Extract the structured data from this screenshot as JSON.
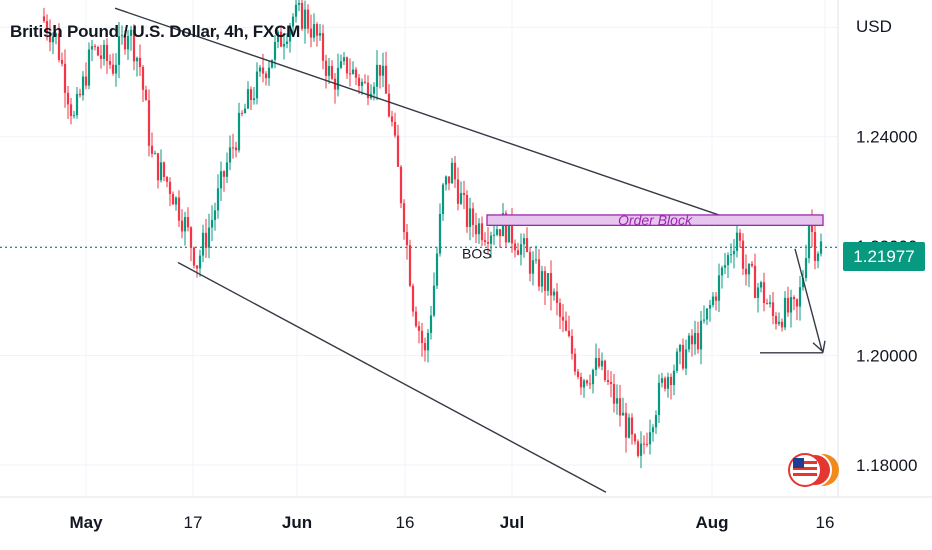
{
  "header": {
    "title": "British Pound / U.S. Dollar, 4h, FXCM",
    "currency": "USD"
  },
  "price_tag": "1.21977",
  "colors": {
    "up": "#089981",
    "down": "#f23645",
    "price_line": "#089981",
    "order_block_fill": "#e7c6ee",
    "order_block_border": "#9c27b0",
    "order_block_text": "#9c27b0",
    "trendline": "#363a45"
  },
  "flags_icon": "us-uk-flags-icon",
  "chart_data": {
    "type": "candlestick",
    "title": "British Pound / U.S. Dollar, 4h, FXCM",
    "ylabel": "USD",
    "ylim": [
      1.1745,
      1.265
    ],
    "y_ticks": [
      "1.24000",
      "1.22000",
      "1.20000",
      "1.18000"
    ],
    "x_ticks": [
      "May",
      "17",
      "Jun",
      "16",
      "Jul",
      "Aug",
      "16"
    ],
    "grid": true,
    "last_price": 1.21977,
    "price_path": [
      {
        "t": 0,
        "p": 1.262
      },
      {
        "t": 5,
        "p": 1.258
      },
      {
        "t": 11,
        "p": 1.243
      },
      {
        "t": 17,
        "p": 1.256
      },
      {
        "t": 24,
        "p": 1.253
      },
      {
        "t": 29,
        "p": 1.26
      },
      {
        "t": 33,
        "p": 1.253
      },
      {
        "t": 37,
        "p": 1.236
      },
      {
        "t": 43,
        "p": 1.231
      },
      {
        "t": 48,
        "p": 1.224
      },
      {
        "t": 52,
        "p": 1.217
      },
      {
        "t": 57,
        "p": 1.225
      },
      {
        "t": 62,
        "p": 1.235
      },
      {
        "t": 68,
        "p": 1.245
      },
      {
        "t": 74,
        "p": 1.252
      },
      {
        "t": 80,
        "p": 1.258
      },
      {
        "t": 84,
        "p": 1.262
      },
      {
        "t": 88,
        "p": 1.262
      },
      {
        "t": 92,
        "p": 1.258
      },
      {
        "t": 97,
        "p": 1.25
      },
      {
        "t": 102,
        "p": 1.253
      },
      {
        "t": 108,
        "p": 1.249
      },
      {
        "t": 113,
        "p": 1.253
      },
      {
        "t": 117,
        "p": 1.242
      },
      {
        "t": 121,
        "p": 1.225
      },
      {
        "t": 124,
        "p": 1.21
      },
      {
        "t": 128,
        "p": 1.2
      },
      {
        "t": 131,
        "p": 1.213
      },
      {
        "t": 134,
        "p": 1.23
      },
      {
        "t": 137,
        "p": 1.234
      },
      {
        "t": 142,
        "p": 1.225
      },
      {
        "t": 148,
        "p": 1.223
      },
      {
        "t": 154,
        "p": 1.224
      },
      {
        "t": 160,
        "p": 1.22
      },
      {
        "t": 165,
        "p": 1.215
      },
      {
        "t": 170,
        "p": 1.212
      },
      {
        "t": 174,
        "p": 1.205
      },
      {
        "t": 180,
        "p": 1.196
      },
      {
        "t": 186,
        "p": 1.198
      },
      {
        "t": 191,
        "p": 1.192
      },
      {
        "t": 196,
        "p": 1.186
      },
      {
        "t": 199,
        "p": 1.18
      },
      {
        "t": 203,
        "p": 1.188
      },
      {
        "t": 208,
        "p": 1.196
      },
      {
        "t": 214,
        "p": 1.2
      },
      {
        "t": 220,
        "p": 1.204
      },
      {
        "t": 225,
        "p": 1.212
      },
      {
        "t": 229,
        "p": 1.218
      },
      {
        "t": 232,
        "p": 1.223
      },
      {
        "t": 235,
        "p": 1.215
      },
      {
        "t": 240,
        "p": 1.212
      },
      {
        "t": 244,
        "p": 1.207
      },
      {
        "t": 248,
        "p": 1.208
      },
      {
        "t": 252,
        "p": 1.208
      },
      {
        "t": 254,
        "p": 1.215
      },
      {
        "t": 256,
        "p": 1.225
      },
      {
        "t": 258,
        "p": 1.22
      }
    ],
    "order_block": {
      "label": "Order Block",
      "top": 1.2257,
      "bottom": 1.2238
    },
    "annotations": [
      {
        "label": "BOS",
        "price": 1.2185
      }
    ],
    "trendlines": [
      {
        "from": [
          1.2635,
          1
        ],
        "to": [
          1.2255,
          1
        ]
      },
      {
        "from": [
          1.217,
          1
        ],
        "to": [
          1.175,
          1
        ]
      }
    ],
    "levels": [
      {
        "price": 1.2005
      }
    ]
  }
}
